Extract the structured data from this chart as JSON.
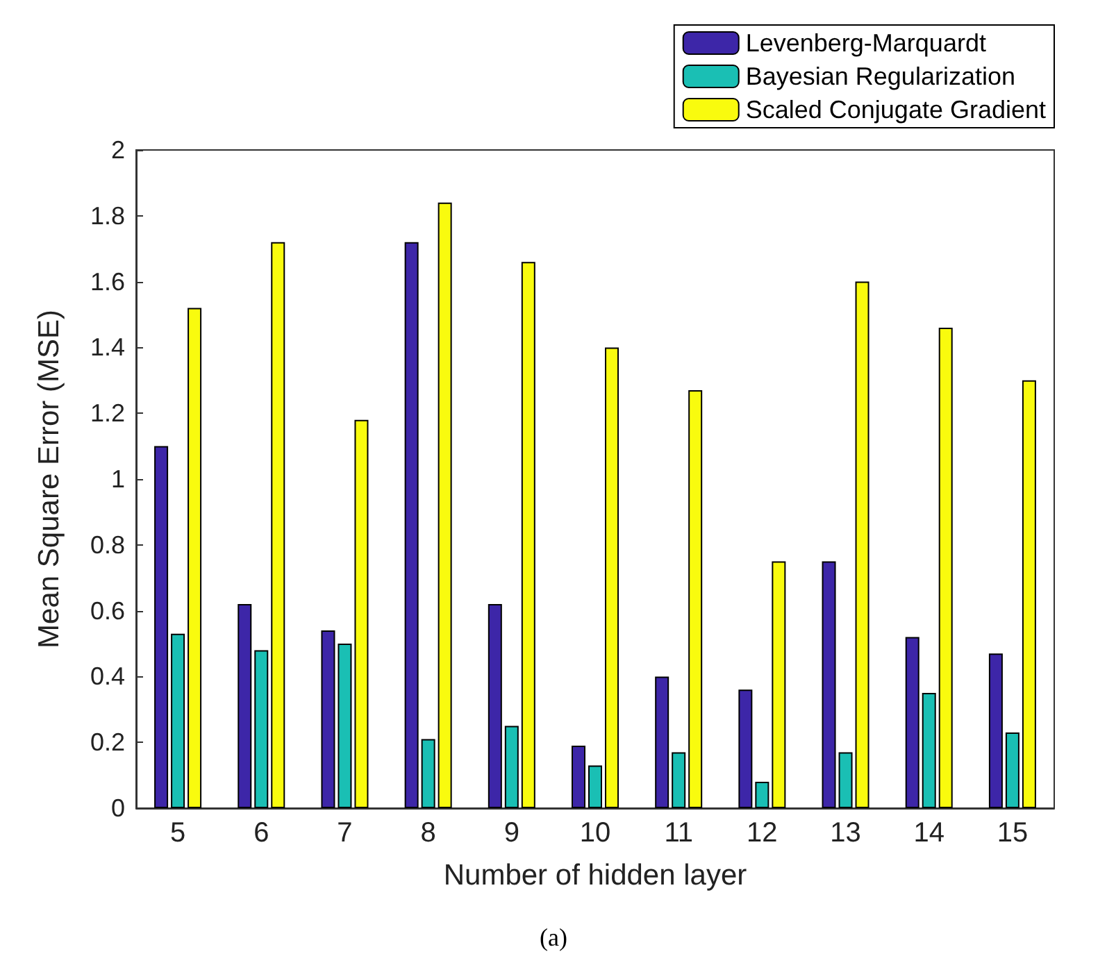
{
  "chart_data": {
    "type": "bar",
    "xlabel": "Number of hidden layer",
    "ylabel": "Mean Square Error (MSE)",
    "categories": [
      "5",
      "6",
      "7",
      "8",
      "9",
      "10",
      "11",
      "12",
      "13",
      "14",
      "15"
    ],
    "series": [
      {
        "name": "Levenberg-Marquardt",
        "color": "#3d26a8",
        "values": [
          1.1,
          0.62,
          0.54,
          1.72,
          0.62,
          0.19,
          0.4,
          0.36,
          0.75,
          0.52,
          0.47
        ]
      },
      {
        "name": "Bayesian Regularization",
        "color": "#1abfb4",
        "values": [
          0.53,
          0.48,
          0.5,
          0.21,
          0.25,
          0.13,
          0.17,
          0.08,
          0.17,
          0.35,
          0.23
        ]
      },
      {
        "name": "Scaled Conjugate Gradient",
        "color": "#f9fb0e",
        "values": [
          1.52,
          1.72,
          1.18,
          1.84,
          1.66,
          1.4,
          1.27,
          0.75,
          1.6,
          1.46,
          1.3
        ]
      }
    ],
    "ylim": [
      0,
      2
    ],
    "yticks": [
      0,
      0.2,
      0.4,
      0.6,
      0.8,
      1,
      1.2,
      1.4,
      1.6,
      1.8,
      2
    ],
    "grid": false,
    "legend": "top right",
    "annotations": [
      "(a)"
    ]
  }
}
